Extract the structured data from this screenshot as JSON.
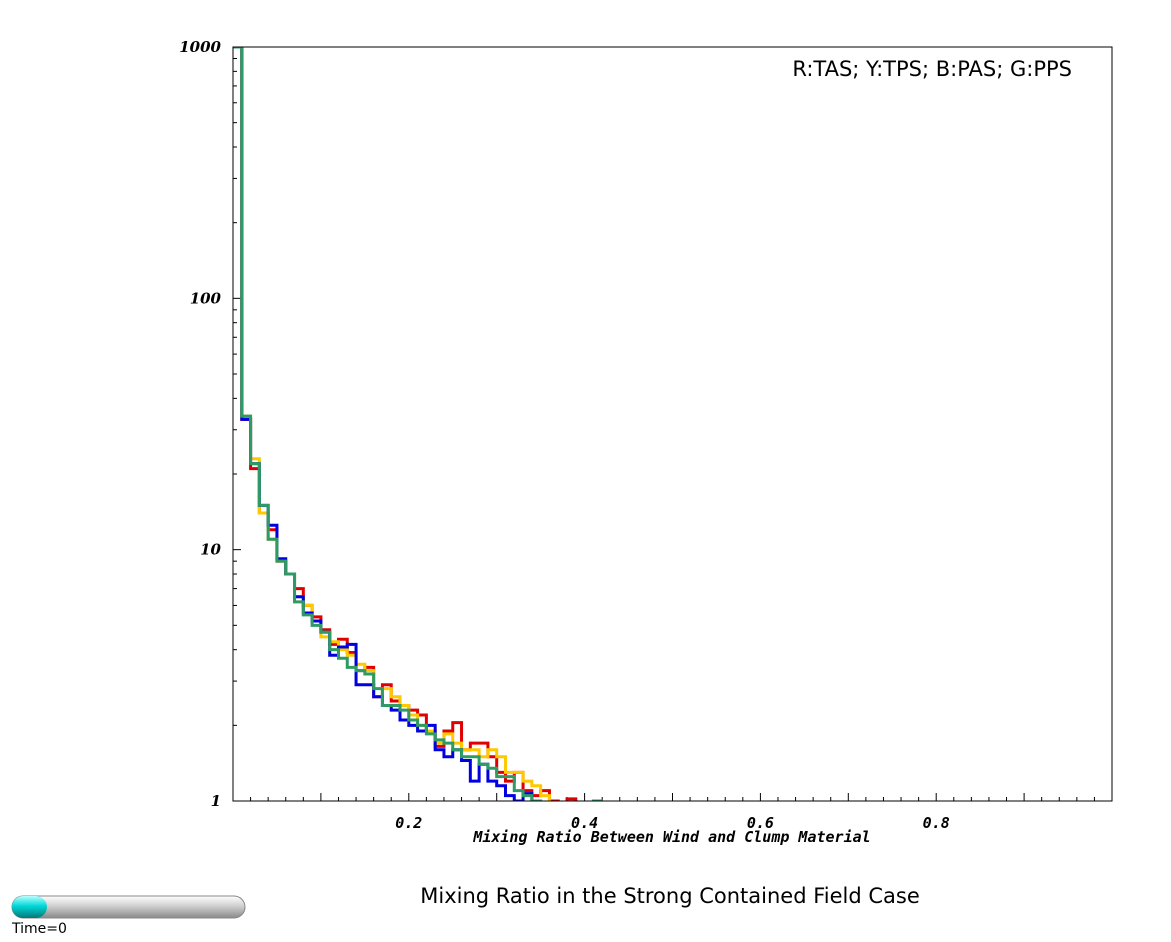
{
  "chart_data": {
    "type": "line",
    "title": "Mixing Ratio in the Strong Contained Field Case",
    "annotation": "R:TAS; Y:TPS; B:PAS; G:PPS",
    "xlabel": "Mixing Ratio Between Wind and Clump Material",
    "ylabel": "",
    "xlim": [
      0,
      1
    ],
    "ylim": [
      1,
      1000
    ],
    "yscale": "log",
    "grid": false,
    "x_ticks": [
      {
        "value": 0.2,
        "label": "0.2"
      },
      {
        "value": 0.4,
        "label": "0.4"
      },
      {
        "value": 0.6,
        "label": "0.6"
      },
      {
        "value": 0.8,
        "label": "0.8"
      }
    ],
    "y_ticks": [
      {
        "value": 1,
        "label": "1"
      },
      {
        "value": 10,
        "label": "10"
      },
      {
        "value": 100,
        "label": "100"
      },
      {
        "value": 1000,
        "label": "1000"
      }
    ],
    "bin_width": 0.01,
    "bins": [
      0.0,
      0.01,
      0.02,
      0.03,
      0.04,
      0.05,
      0.06,
      0.07,
      0.08,
      0.09,
      0.1,
      0.11,
      0.12,
      0.13,
      0.14,
      0.15,
      0.16,
      0.17,
      0.18,
      0.19,
      0.2,
      0.21,
      0.22,
      0.23,
      0.24,
      0.25,
      0.26,
      0.27,
      0.28,
      0.29,
      0.3,
      0.31,
      0.32,
      0.33,
      0.34,
      0.35,
      0.36,
      0.37,
      0.38,
      0.39,
      0.4,
      0.41
    ],
    "series": [
      {
        "name": "TAS",
        "color": "#e00000",
        "values": [
          1000,
          33,
          21,
          14,
          12,
          9,
          8,
          7,
          6,
          5.4,
          4.8,
          4.2,
          4.4,
          3.9,
          3.3,
          3.4,
          2.6,
          2.9,
          2.5,
          2.4,
          2.3,
          2.2,
          1.9,
          1.65,
          1.9,
          2.05,
          1.6,
          1.7,
          1.7,
          1.5,
          1.3,
          1.2,
          1.3,
          1.1,
          1.05,
          1.1,
          1.0,
          0.9,
          1.02,
          0.9,
          0.9,
          0.9
        ]
      },
      {
        "name": "TPS",
        "color": "#ffc800",
        "values": [
          1000,
          34,
          23,
          14,
          11,
          9,
          8,
          6.5,
          6,
          5.2,
          4.5,
          4.3,
          4.0,
          3.8,
          3.5,
          3.3,
          2.6,
          2.8,
          2.6,
          2.4,
          2.2,
          2.0,
          1.9,
          1.7,
          1.85,
          1.7,
          1.6,
          1.6,
          1.5,
          1.6,
          1.5,
          1.3,
          1.3,
          1.2,
          1.15,
          1.05,
          0.95,
          0.9,
          0.9,
          0.9,
          0.9,
          0.9
        ]
      },
      {
        "name": "PAS",
        "color": "#0000e0",
        "values": [
          1000,
          33,
          22,
          15,
          12.5,
          9.2,
          8,
          6.5,
          5.6,
          5.2,
          4.7,
          3.8,
          4.1,
          4.2,
          2.9,
          2.9,
          2.6,
          2.4,
          2.3,
          2.1,
          2.0,
          1.9,
          2.0,
          1.6,
          1.5,
          1.6,
          1.45,
          1.2,
          1.4,
          1.2,
          1.15,
          1.05,
          1.0,
          1.07,
          0.95,
          0.9,
          0.9,
          0.9,
          0.9,
          0.9,
          0.9,
          0.9
        ]
      },
      {
        "name": "PPS",
        "color": "#2e9a64",
        "values": [
          1000,
          34,
          22,
          15,
          11,
          9,
          8,
          6.2,
          5.5,
          5,
          4.7,
          4.0,
          3.7,
          3.4,
          3.3,
          3.2,
          2.8,
          2.4,
          2.4,
          2.3,
          2.1,
          2.0,
          1.85,
          1.75,
          1.7,
          1.6,
          1.5,
          1.5,
          1.4,
          1.35,
          1.25,
          1.25,
          1.1,
          1.05,
          1.0,
          0.95,
          0.9,
          0.9,
          0.9,
          0.9,
          0.9,
          1.0
        ]
      }
    ]
  },
  "time_slider": {
    "label": "Time=0",
    "progress": 0.15,
    "track_color": "#d8d8d8",
    "fill_color": "#00d8d8"
  }
}
